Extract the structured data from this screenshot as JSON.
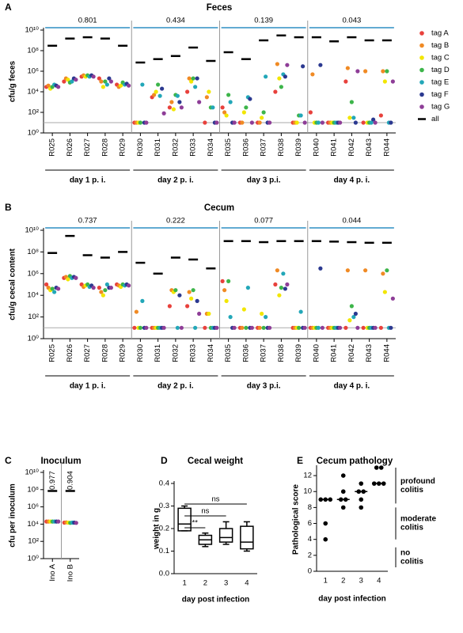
{
  "chart_data": [
    {
      "type": "strip",
      "panel": "A",
      "title": "Feces",
      "y_label": "cfu/g feces",
      "log": true,
      "ylim": [
        1,
        10000000000
      ],
      "yticks": [
        {
          "value": 1,
          "label": "10⁰"
        },
        {
          "value": 100,
          "label": "10²"
        },
        {
          "value": 10000,
          "label": "10⁴"
        },
        {
          "value": 1000000,
          "label": "10⁶"
        },
        {
          "value": 100000000,
          "label": "10⁸"
        },
        {
          "value": 10000000000,
          "label": "10¹⁰"
        }
      ],
      "hline": 10,
      "legend": "right",
      "groups": [
        {
          "label": "day 1 p. i.",
          "annotation": 0.801,
          "categories": [
            "R025",
            "R026",
            "R027",
            "R028",
            "R029"
          ]
        },
        {
          "label": "day 2 p. i.",
          "annotation": 0.434,
          "categories": [
            "R030",
            "R031",
            "R032",
            "R033",
            "R034"
          ]
        },
        {
          "label": "day 3 p.i.",
          "annotation": 0.139,
          "categories": [
            "R035",
            "R036",
            "R037",
            "R038",
            "R039"
          ]
        },
        {
          "label": "day 4 p. i.",
          "annotation": 0.043,
          "categories": [
            "R040",
            "R041",
            "R042",
            "R043",
            "R044"
          ]
        }
      ],
      "series": [
        {
          "name": "tag A",
          "color": "#e8413c",
          "values": [
            30000.0,
            100000.0,
            300000.0,
            200000.0,
            50000.0,
            10,
            3000.0,
            300.0,
            10000.0,
            10,
            300.0,
            10,
            10,
            10000.0,
            10,
            100.0,
            10,
            100000.0,
            10,
            50
          ]
        },
        {
          "name": "tag B",
          "color": "#f08a24",
          "values": [
            40000.0,
            200000.0,
            400000.0,
            100000.0,
            30000.0,
            10,
            5000.0,
            1000.0,
            200000.0,
            3000.0,
            100.0,
            10,
            10,
            5000000.0,
            10,
            500000.0,
            10,
            2000000.0,
            1000000.0,
            1000000.0
          ]
        },
        {
          "name": "tag C",
          "color": "#f2e600",
          "values": [
            20000.0,
            150000.0,
            300000.0,
            30000.0,
            40000.0,
            10,
            10000.0,
            200.0,
            100000.0,
            10000.0,
            50,
            100.0,
            30,
            200000.0,
            10,
            10,
            10,
            30,
            10,
            100000.0
          ]
        },
        {
          "name": "tag D",
          "color": "#3db54a",
          "values": [
            30000.0,
            80000.0,
            400000.0,
            100000.0,
            80000.0,
            10,
            50000.0,
            5000.0,
            200000.0,
            300.0,
            5000.0,
            300.0,
            100.0,
            30000.0,
            50,
            10,
            10,
            1000.0,
            10,
            1000000.0
          ]
        },
        {
          "name": "tag E",
          "color": "#22a7b8",
          "values": [
            50000.0,
            100000.0,
            300000.0,
            50000.0,
            50000.0,
            50000.0,
            4000.0,
            4000.0,
            30000.0,
            300.0,
            1000.0,
            3000.0,
            300000.0,
            500000.0,
            50,
            10,
            10,
            30,
            10,
            10
          ]
        },
        {
          "name": "tag F",
          "color": "#2b3990",
          "values": [
            40000.0,
            200000.0,
            400000.0,
            200000.0,
            60000.0,
            10,
            20000.0,
            1000.0,
            200000.0,
            10,
            10,
            2000.0,
            10,
            300000.0,
            3000000.0,
            4000000.0,
            10,
            10,
            20,
            10
          ]
        },
        {
          "name": "tag G",
          "color": "#8e3d97",
          "values": [
            30000.0,
            150000.0,
            300000.0,
            100000.0,
            40000.0,
            10,
            80,
            300.0,
            1000.0,
            10,
            10,
            10,
            10,
            4000000.0,
            10,
            10,
            10,
            1000000.0,
            10,
            100000.0
          ]
        },
        {
          "name": "all",
          "color": "#000000",
          "marker": "dash",
          "values": [
            300000000.0,
            1500000000.0,
            2000000000.0,
            1500000000.0,
            300000000.0,
            7000000.0,
            15000000.0,
            30000000.0,
            200000000.0,
            10000000.0,
            70000000.0,
            15000000.0,
            1000000000.0,
            3000000000.0,
            2000000000.0,
            2000000000.0,
            800000000.0,
            2000000000.0,
            1000000000.0,
            1000000000.0
          ]
        }
      ]
    },
    {
      "type": "strip",
      "panel": "B",
      "title": "Cecum",
      "y_label": "cfu/g cecal content",
      "log": true,
      "ylim": [
        1,
        10000000000
      ],
      "yticks": [
        {
          "value": 1,
          "label": "10⁰"
        },
        {
          "value": 100,
          "label": "10²"
        },
        {
          "value": 10000,
          "label": "10⁴"
        },
        {
          "value": 1000000,
          "label": "10⁶"
        },
        {
          "value": 100000000,
          "label": "10⁸"
        },
        {
          "value": 10000000000,
          "label": "10¹⁰"
        }
      ],
      "hline": 10,
      "groups": [
        {
          "label": "day 1 p. i.",
          "annotation": 0.737,
          "categories": [
            "R025",
            "R026",
            "R027",
            "R028",
            "R029"
          ]
        },
        {
          "label": "day 2 p. i.",
          "annotation": 0.222,
          "categories": [
            "R030",
            "R031",
            "R032",
            "R033",
            "R034"
          ]
        },
        {
          "label": "day 3 p.i.",
          "annotation": 0.077,
          "categories": [
            "R035",
            "R036",
            "R037",
            "R038",
            "R039"
          ]
        },
        {
          "label": "day 4 p. i.",
          "annotation": 0.044,
          "categories": [
            "R040",
            "R041",
            "R042",
            "R043",
            "R044"
          ]
        }
      ],
      "series": [
        {
          "color": "#e8413c",
          "values": [
            100000.0,
            400000.0,
            100000.0,
            50000.0,
            100000.0,
            10,
            10,
            1000.0,
            1000.0,
            10,
            200000.0,
            10,
            10,
            100000.0,
            10,
            10,
            10,
            10,
            10,
            10
          ]
        },
        {
          "color": "#f08a24",
          "values": [
            50000.0,
            500000.0,
            60000.0,
            20000.0,
            80000.0,
            300.0,
            10,
            30000.0,
            20000.0,
            200.0,
            30000.0,
            10,
            10,
            2000000.0,
            10,
            10,
            10,
            2000000.0,
            2000000.0,
            1000000.0
          ]
        },
        {
          "color": "#f2e600",
          "values": [
            30000.0,
            300000.0,
            80000.0,
            10000.0,
            60000.0,
            10,
            10,
            20000.0,
            5000.0,
            200.0,
            3000.0,
            500.0,
            200.0,
            10000.0,
            10,
            10,
            10,
            50,
            10,
            20000.0
          ]
        },
        {
          "color": "#3db54a",
          "values": [
            40000.0,
            600000.0,
            100000.0,
            30000.0,
            100000.0,
            10,
            10,
            30000.0,
            30000.0,
            10,
            200000.0,
            10,
            10,
            50000.0,
            10,
            10,
            10,
            1000.0,
            10,
            2000000.0
          ]
        },
        {
          "color": "#22a7b8",
          "values": [
            20000.0,
            400000.0,
            60000.0,
            100000.0,
            80000.0,
            3000.0,
            10,
            10,
            10,
            10,
            100.0,
            50000.0,
            100.0,
            1000000.0,
            300.0,
            10,
            10,
            100.0,
            10,
            10
          ]
        },
        {
          "color": "#2b3990",
          "values": [
            50000.0,
            500000.0,
            80000.0,
            50000.0,
            100000.0,
            10,
            10,
            10000.0,
            3000.0,
            10,
            10,
            10,
            10,
            40000.0,
            10,
            3000000.0,
            10,
            200.0,
            10,
            10
          ]
        },
        {
          "color": "#8e3d97",
          "values": [
            40000.0,
            400000.0,
            50000.0,
            50000.0,
            80000.0,
            10,
            10,
            10,
            200.0,
            10,
            10,
            10,
            10,
            100000.0,
            10,
            10,
            10,
            10,
            10,
            5000.0
          ]
        },
        {
          "color": "#000000",
          "marker": "dash",
          "values": [
            80000000.0,
            3000000000.0,
            50000000.0,
            30000000.0,
            100000000.0,
            10000000.0,
            1000000.0,
            30000000.0,
            20000000.0,
            3000000.0,
            1000000000.0,
            1000000000.0,
            800000000.0,
            1000000000.0,
            1000000000.0,
            1000000000.0,
            900000000.0,
            800000000.0,
            700000000.0,
            700000000.0
          ]
        }
      ]
    },
    {
      "type": "strip",
      "panel": "C",
      "title": "Inoculum",
      "y_label": "cfu per inoculum",
      "log": true,
      "ylim": [
        1,
        10000000000
      ],
      "yticks": [
        {
          "value": 1,
          "label": "10⁰"
        },
        {
          "value": 100,
          "label": "10²"
        },
        {
          "value": 10000,
          "label": "10⁴"
        },
        {
          "value": 1000000,
          "label": "10⁶"
        },
        {
          "value": 100000000,
          "label": "10⁸"
        },
        {
          "value": 10000000000,
          "label": "10¹⁰"
        }
      ],
      "groups": [
        {
          "annotation": 0.977,
          "categories": [
            "Ino A"
          ]
        },
        {
          "annotation": 0.904,
          "categories": [
            "Ino B"
          ]
        }
      ],
      "series": [
        {
          "color": "#e8413c",
          "values": [
            20000.0,
            15000.0
          ]
        },
        {
          "color": "#f08a24",
          "values": [
            20000.0,
            16000.0
          ]
        },
        {
          "color": "#f2e600",
          "values": [
            20000.0,
            15000.0
          ]
        },
        {
          "color": "#3db54a",
          "values": [
            20000.0,
            14000.0
          ]
        },
        {
          "color": "#22a7b8",
          "values": [
            20000.0,
            15000.0
          ]
        },
        {
          "color": "#2b3990",
          "values": [
            20000.0,
            15000.0
          ]
        },
        {
          "color": "#8e3d97",
          "values": [
            20000.0,
            14000.0
          ]
        },
        {
          "color": "#000000",
          "marker": "dash",
          "values": [
            70000000.0,
            70000000.0
          ]
        }
      ]
    },
    {
      "type": "box",
      "panel": "D",
      "title": "Cecal weight",
      "y_label": "weight in g",
      "x_label": "day post infection",
      "categories": [
        "1",
        "2",
        "3",
        "4"
      ],
      "ylim": [
        0,
        0.4
      ],
      "yticks": [
        {
          "value": 0,
          "label": "0.0"
        },
        0.1,
        0.2,
        0.3,
        0.4
      ],
      "boxes": [
        {
          "min": 0.19,
          "q1": 0.19,
          "median": 0.22,
          "q3": 0.29,
          "max": 0.3
        },
        {
          "min": 0.12,
          "q1": 0.13,
          "median": 0.15,
          "q3": 0.17,
          "max": 0.18
        },
        {
          "min": 0.13,
          "q1": 0.14,
          "median": 0.16,
          "q3": 0.2,
          "max": 0.23
        },
        {
          "min": 0.1,
          "q1": 0.11,
          "median": 0.14,
          "q3": 0.21,
          "max": 0.23
        }
      ],
      "comparisons": [
        {
          "pair": [
            "1",
            "4"
          ],
          "label": "ns"
        },
        {
          "pair": [
            "1",
            "3"
          ],
          "label": "ns"
        },
        {
          "pair": [
            "1",
            "2"
          ],
          "label": "**"
        }
      ]
    },
    {
      "type": "dot_median",
      "panel": "E",
      "title": "Cecum pathology",
      "y_label": "Pathological score",
      "x_label": "day post infection",
      "categories": [
        "1",
        "2",
        "3",
        "4"
      ],
      "ylim": [
        0,
        13
      ],
      "yticks": [
        0,
        2,
        4,
        6,
        8,
        10,
        12
      ],
      "values": [
        [
          9,
          9,
          9,
          6,
          4
        ],
        [
          12,
          10,
          9,
          9,
          8
        ],
        [
          11,
          10,
          10,
          9,
          8
        ],
        [
          13,
          13,
          11,
          11,
          11
        ]
      ],
      "medians": [
        9,
        9,
        10,
        11
      ],
      "brackets": [
        {
          "lines": [
            "profound",
            "colitis"
          ],
          "from": 8.5,
          "to": 13
        },
        {
          "lines": [
            "moderate",
            "colitis"
          ],
          "from": 4,
          "to": 8
        },
        {
          "lines": [
            "no",
            "colitis"
          ],
          "from": 0.5,
          "to": 3
        }
      ]
    }
  ]
}
